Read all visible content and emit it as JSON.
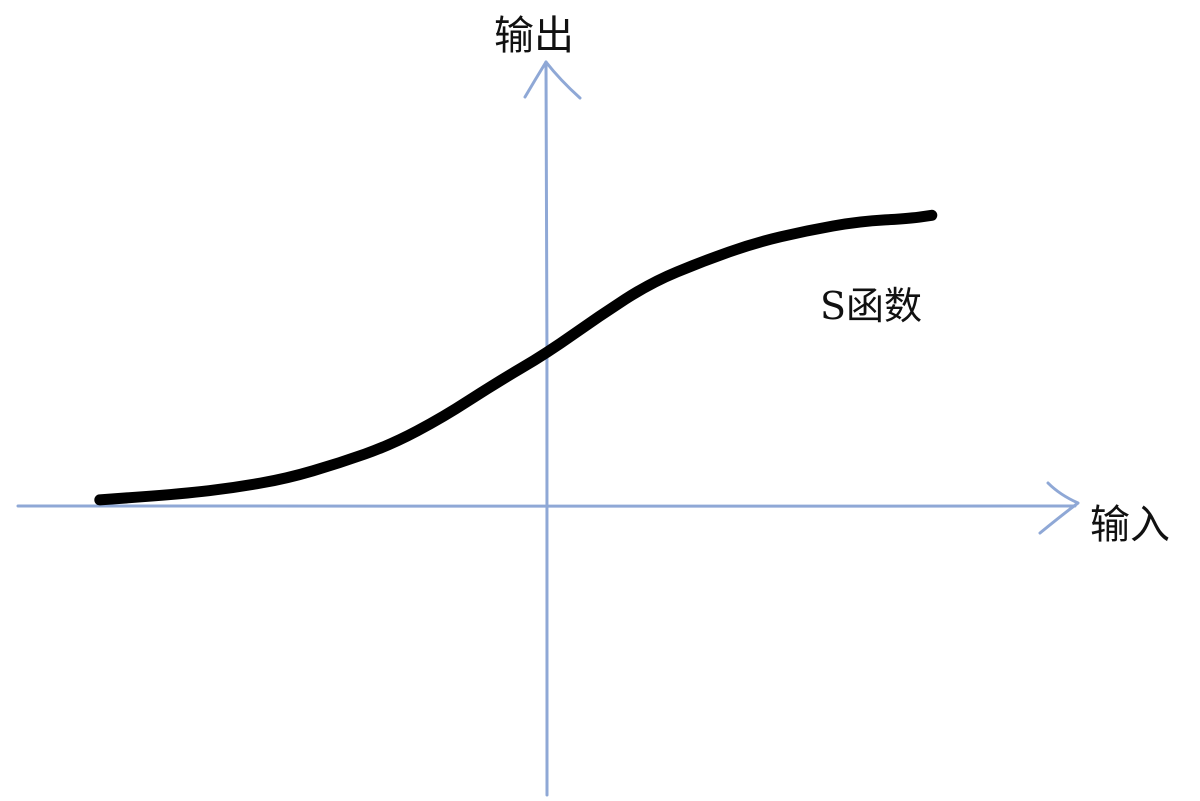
{
  "axes": {
    "x_label": "输入",
    "y_label": "输出",
    "axis_color": "#8fa8d6"
  },
  "curve": {
    "label": "S函数",
    "color": "#000000",
    "kind": "sigmoid"
  },
  "chart_data": {
    "type": "line",
    "title": "",
    "xlabel": "输入",
    "ylabel": "输出",
    "series": [
      {
        "name": "S函数",
        "x": [
          -4.3,
          -3.5,
          -3,
          -2.5,
          -2,
          -1.5,
          -1,
          -0.5,
          0,
          0.5,
          1,
          1.5,
          2,
          2.5,
          3,
          3.5,
          3.7
        ],
        "y": [
          0.02,
          0.04,
          0.06,
          0.09,
          0.14,
          0.2,
          0.29,
          0.4,
          0.5,
          0.62,
          0.73,
          0.8,
          0.86,
          0.9,
          0.93,
          0.94,
          0.95
        ]
      }
    ]
  }
}
